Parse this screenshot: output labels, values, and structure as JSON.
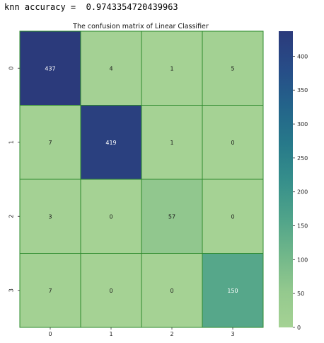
{
  "output": {
    "line": "knn accuracy =  0.9743354720439963"
  },
  "chart_data": {
    "type": "heatmap",
    "title": "The confusion matrix of Linear Classifier",
    "row_labels": [
      "0",
      "1",
      "2",
      "3"
    ],
    "col_labels": [
      "0",
      "1",
      "2",
      "3"
    ],
    "values": [
      [
        437,
        4,
        1,
        5
      ],
      [
        7,
        419,
        1,
        0
      ],
      [
        3,
        0,
        57,
        0
      ],
      [
        7,
        0,
        0,
        150
      ]
    ],
    "colormap": "crest",
    "colorbar": {
      "min": 0,
      "max": 437,
      "ticks": [
        0,
        50,
        100,
        150,
        200,
        250,
        300,
        350,
        400
      ]
    },
    "cell_border_color": "#2e8b2e",
    "annotation_light_color": "#ffffff",
    "annotation_dark_color": "#1a1a1a"
  }
}
